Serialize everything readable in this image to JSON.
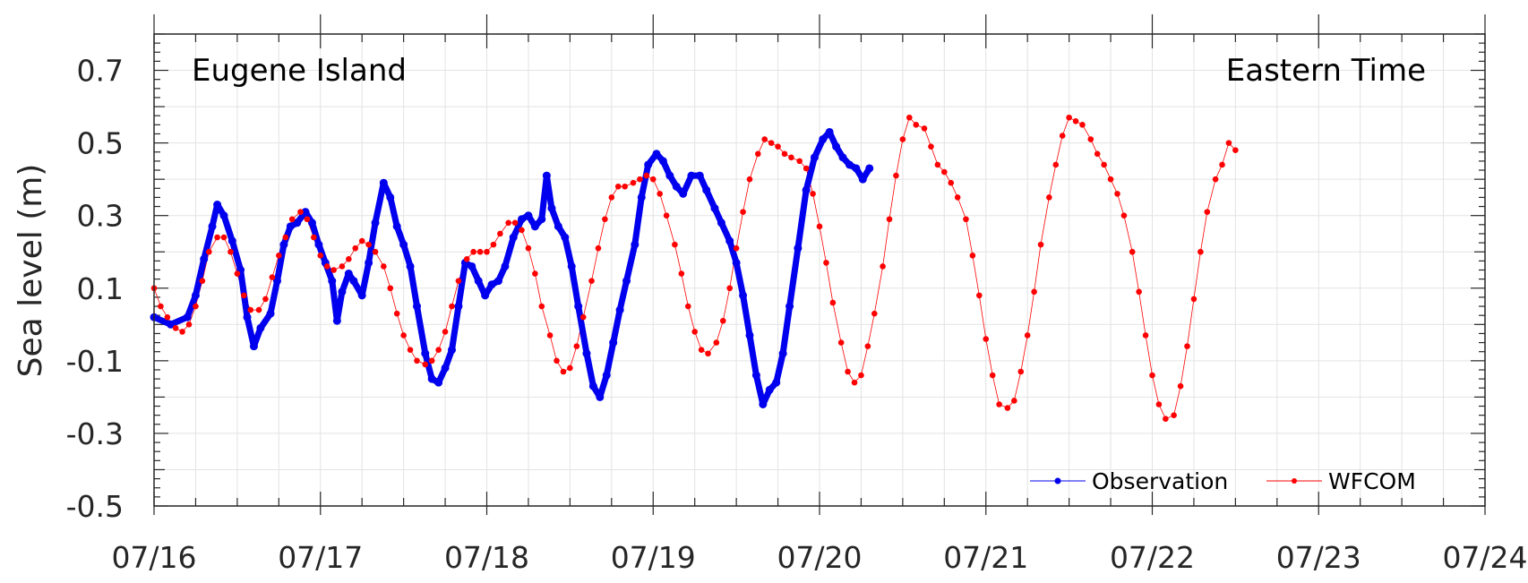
{
  "chart_data": {
    "type": "line",
    "title_left": "Eugene Island",
    "title_right": "Eastern Time",
    "xlabel": "",
    "ylabel": "Sea level (m)",
    "xlim": [
      "07/16",
      "07/24"
    ],
    "ylim": [
      -0.5,
      0.8
    ],
    "xticks": [
      "07/16",
      "07/17",
      "07/18",
      "07/19",
      "07/20",
      "07/21",
      "07/22",
      "07/23",
      "07/24"
    ],
    "yticks": [
      "0.7",
      "0.5",
      "0.3",
      "0.1",
      "-0.1",
      "-0.3",
      "-0.5"
    ],
    "ytick_values": [
      0.7,
      0.5,
      0.3,
      0.1,
      -0.1,
      -0.3,
      -0.5
    ],
    "grid": true,
    "legend_position": "bottom-right",
    "series": [
      {
        "name": "Observation",
        "color": "#0000ee",
        "x_unit": "days since 07/16 00:00",
        "points": [
          [
            0.0,
            0.02
          ],
          [
            0.1,
            0.0
          ],
          [
            0.2,
            0.02
          ],
          [
            0.25,
            0.08
          ],
          [
            0.3,
            0.18
          ],
          [
            0.35,
            0.27
          ],
          [
            0.38,
            0.33
          ],
          [
            0.42,
            0.3
          ],
          [
            0.47,
            0.23
          ],
          [
            0.52,
            0.15
          ],
          [
            0.56,
            0.02
          ],
          [
            0.6,
            -0.06
          ],
          [
            0.64,
            -0.01
          ],
          [
            0.7,
            0.03
          ],
          [
            0.74,
            0.12
          ],
          [
            0.78,
            0.22
          ],
          [
            0.82,
            0.27
          ],
          [
            0.86,
            0.28
          ],
          [
            0.91,
            0.31
          ],
          [
            0.95,
            0.28
          ],
          [
            0.99,
            0.22
          ],
          [
            1.03,
            0.17
          ],
          [
            1.07,
            0.12
          ],
          [
            1.1,
            0.01
          ],
          [
            1.13,
            0.09
          ],
          [
            1.17,
            0.14
          ],
          [
            1.2,
            0.12
          ],
          [
            1.25,
            0.08
          ],
          [
            1.29,
            0.17
          ],
          [
            1.33,
            0.28
          ],
          [
            1.38,
            0.39
          ],
          [
            1.42,
            0.35
          ],
          [
            1.46,
            0.27
          ],
          [
            1.5,
            0.22
          ],
          [
            1.54,
            0.16
          ],
          [
            1.58,
            0.05
          ],
          [
            1.63,
            -0.08
          ],
          [
            1.67,
            -0.15
          ],
          [
            1.71,
            -0.16
          ],
          [
            1.75,
            -0.12
          ],
          [
            1.79,
            -0.07
          ],
          [
            1.83,
            0.05
          ],
          [
            1.87,
            0.17
          ],
          [
            1.91,
            0.16
          ],
          [
            1.95,
            0.12
          ],
          [
            1.99,
            0.08
          ],
          [
            2.03,
            0.11
          ],
          [
            2.07,
            0.12
          ],
          [
            2.11,
            0.16
          ],
          [
            2.16,
            0.24
          ],
          [
            2.21,
            0.29
          ],
          [
            2.25,
            0.3
          ],
          [
            2.29,
            0.27
          ],
          [
            2.33,
            0.29
          ],
          [
            2.36,
            0.41
          ],
          [
            2.39,
            0.32
          ],
          [
            2.43,
            0.27
          ],
          [
            2.47,
            0.24
          ],
          [
            2.51,
            0.16
          ],
          [
            2.55,
            0.05
          ],
          [
            2.6,
            -0.08
          ],
          [
            2.64,
            -0.17
          ],
          [
            2.68,
            -0.2
          ],
          [
            2.72,
            -0.14
          ],
          [
            2.76,
            -0.05
          ],
          [
            2.8,
            0.04
          ],
          [
            2.84,
            0.12
          ],
          [
            2.89,
            0.22
          ],
          [
            2.93,
            0.35
          ],
          [
            2.97,
            0.44
          ],
          [
            3.02,
            0.47
          ],
          [
            3.06,
            0.45
          ],
          [
            3.1,
            0.41
          ],
          [
            3.14,
            0.38
          ],
          [
            3.18,
            0.36
          ],
          [
            3.23,
            0.41
          ],
          [
            3.28,
            0.41
          ],
          [
            3.32,
            0.37
          ],
          [
            3.37,
            0.32
          ],
          [
            3.41,
            0.28
          ],
          [
            3.46,
            0.23
          ],
          [
            3.5,
            0.17
          ],
          [
            3.54,
            0.08
          ],
          [
            3.58,
            -0.03
          ],
          [
            3.62,
            -0.14
          ],
          [
            3.66,
            -0.22
          ],
          [
            3.7,
            -0.18
          ],
          [
            3.74,
            -0.16
          ],
          [
            3.78,
            -0.08
          ],
          [
            3.82,
            0.05
          ],
          [
            3.87,
            0.21
          ],
          [
            3.92,
            0.37
          ],
          [
            3.97,
            0.46
          ],
          [
            4.02,
            0.51
          ],
          [
            4.06,
            0.53
          ],
          [
            4.1,
            0.49
          ],
          [
            4.14,
            0.46
          ],
          [
            4.18,
            0.44
          ],
          [
            4.22,
            0.43
          ],
          [
            4.26,
            0.4
          ],
          [
            4.3,
            0.43
          ]
        ]
      },
      {
        "name": "WFCOM",
        "color": "#ff0000",
        "x_unit": "days since 07/16 00:00",
        "points": [
          [
            0.0,
            0.1
          ],
          [
            0.04,
            0.05
          ],
          [
            0.08,
            0.02
          ],
          [
            0.13,
            -0.01
          ],
          [
            0.17,
            -0.02
          ],
          [
            0.21,
            0.0
          ],
          [
            0.25,
            0.05
          ],
          [
            0.29,
            0.12
          ],
          [
            0.33,
            0.2
          ],
          [
            0.38,
            0.24
          ],
          [
            0.42,
            0.24
          ],
          [
            0.46,
            0.2
          ],
          [
            0.5,
            0.14
          ],
          [
            0.54,
            0.08
          ],
          [
            0.58,
            0.04
          ],
          [
            0.63,
            0.04
          ],
          [
            0.67,
            0.07
          ],
          [
            0.71,
            0.13
          ],
          [
            0.75,
            0.19
          ],
          [
            0.79,
            0.24
          ],
          [
            0.83,
            0.29
          ],
          [
            0.88,
            0.31
          ],
          [
            0.92,
            0.29
          ],
          [
            0.96,
            0.24
          ],
          [
            1.0,
            0.19
          ],
          [
            1.04,
            0.16
          ],
          [
            1.08,
            0.15
          ],
          [
            1.13,
            0.16
          ],
          [
            1.17,
            0.18
          ],
          [
            1.21,
            0.21
          ],
          [
            1.25,
            0.23
          ],
          [
            1.29,
            0.22
          ],
          [
            1.33,
            0.2
          ],
          [
            1.38,
            0.16
          ],
          [
            1.42,
            0.1
          ],
          [
            1.46,
            0.03
          ],
          [
            1.5,
            -0.03
          ],
          [
            1.54,
            -0.07
          ],
          [
            1.58,
            -0.1
          ],
          [
            1.63,
            -0.11
          ],
          [
            1.67,
            -0.1
          ],
          [
            1.71,
            -0.07
          ],
          [
            1.75,
            -0.02
          ],
          [
            1.79,
            0.05
          ],
          [
            1.83,
            0.12
          ],
          [
            1.88,
            0.18
          ],
          [
            1.92,
            0.2
          ],
          [
            1.96,
            0.2
          ],
          [
            2.0,
            0.2
          ],
          [
            2.04,
            0.22
          ],
          [
            2.08,
            0.25
          ],
          [
            2.13,
            0.28
          ],
          [
            2.17,
            0.28
          ],
          [
            2.21,
            0.26
          ],
          [
            2.25,
            0.21
          ],
          [
            2.29,
            0.14
          ],
          [
            2.33,
            0.05
          ],
          [
            2.38,
            -0.03
          ],
          [
            2.42,
            -0.1
          ],
          [
            2.46,
            -0.13
          ],
          [
            2.5,
            -0.12
          ],
          [
            2.54,
            -0.06
          ],
          [
            2.58,
            0.02
          ],
          [
            2.63,
            0.12
          ],
          [
            2.67,
            0.21
          ],
          [
            2.71,
            0.29
          ],
          [
            2.75,
            0.35
          ],
          [
            2.79,
            0.38
          ],
          [
            2.83,
            0.38
          ],
          [
            2.88,
            0.39
          ],
          [
            2.92,
            0.4
          ],
          [
            2.96,
            0.41
          ],
          [
            3.0,
            0.4
          ],
          [
            3.04,
            0.36
          ],
          [
            3.08,
            0.3
          ],
          [
            3.13,
            0.22
          ],
          [
            3.17,
            0.14
          ],
          [
            3.21,
            0.05
          ],
          [
            3.25,
            -0.02
          ],
          [
            3.29,
            -0.07
          ],
          [
            3.33,
            -0.08
          ],
          [
            3.38,
            -0.05
          ],
          [
            3.42,
            0.01
          ],
          [
            3.46,
            0.1
          ],
          [
            3.5,
            0.21
          ],
          [
            3.54,
            0.31
          ],
          [
            3.58,
            0.4
          ],
          [
            3.63,
            0.47
          ],
          [
            3.67,
            0.51
          ],
          [
            3.71,
            0.5
          ],
          [
            3.75,
            0.49
          ],
          [
            3.79,
            0.47
          ],
          [
            3.83,
            0.46
          ],
          [
            3.88,
            0.45
          ],
          [
            3.92,
            0.43
          ],
          [
            3.96,
            0.36
          ],
          [
            4.0,
            0.27
          ],
          [
            4.04,
            0.17
          ],
          [
            4.08,
            0.06
          ],
          [
            4.13,
            -0.05
          ],
          [
            4.17,
            -0.13
          ],
          [
            4.21,
            -0.16
          ],
          [
            4.25,
            -0.14
          ],
          [
            4.29,
            -0.06
          ],
          [
            4.33,
            0.03
          ],
          [
            4.38,
            0.16
          ],
          [
            4.42,
            0.29
          ],
          [
            4.46,
            0.41
          ],
          [
            4.5,
            0.51
          ],
          [
            4.54,
            0.57
          ],
          [
            4.58,
            0.55
          ],
          [
            4.63,
            0.54
          ],
          [
            4.67,
            0.49
          ],
          [
            4.71,
            0.44
          ],
          [
            4.75,
            0.42
          ],
          [
            4.79,
            0.39
          ],
          [
            4.83,
            0.35
          ],
          [
            4.88,
            0.29
          ],
          [
            4.92,
            0.19
          ],
          [
            4.96,
            0.08
          ],
          [
            5.0,
            -0.04
          ],
          [
            5.04,
            -0.14
          ],
          [
            5.08,
            -0.22
          ],
          [
            5.13,
            -0.23
          ],
          [
            5.17,
            -0.21
          ],
          [
            5.21,
            -0.13
          ],
          [
            5.25,
            -0.03
          ],
          [
            5.29,
            0.09
          ],
          [
            5.33,
            0.22
          ],
          [
            5.38,
            0.35
          ],
          [
            5.42,
            0.44
          ],
          [
            5.46,
            0.52
          ],
          [
            5.5,
            0.57
          ],
          [
            5.54,
            0.56
          ],
          [
            5.58,
            0.55
          ],
          [
            5.63,
            0.51
          ],
          [
            5.67,
            0.47
          ],
          [
            5.71,
            0.44
          ],
          [
            5.75,
            0.4
          ],
          [
            5.79,
            0.36
          ],
          [
            5.83,
            0.3
          ],
          [
            5.88,
            0.2
          ],
          [
            5.92,
            0.09
          ],
          [
            5.96,
            -0.03
          ],
          [
            6.0,
            -0.14
          ],
          [
            6.04,
            -0.22
          ],
          [
            6.08,
            -0.26
          ],
          [
            6.13,
            -0.25
          ],
          [
            6.17,
            -0.17
          ],
          [
            6.21,
            -0.06
          ],
          [
            6.25,
            0.07
          ],
          [
            6.29,
            0.2
          ],
          [
            6.33,
            0.31
          ],
          [
            6.38,
            0.4
          ],
          [
            6.42,
            0.44
          ],
          [
            6.46,
            0.5
          ],
          [
            6.5,
            0.48
          ]
        ]
      }
    ]
  }
}
